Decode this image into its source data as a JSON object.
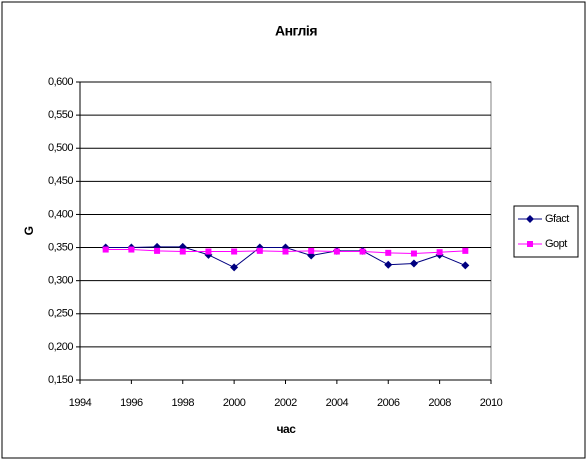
{
  "chart_data": {
    "type": "line",
    "title": "Англія",
    "x_label": "час",
    "y_label": "G",
    "x": [
      1995,
      1996,
      1997,
      1998,
      1999,
      2000,
      2001,
      2002,
      2003,
      2004,
      2005,
      2006,
      2007,
      2008,
      2009
    ],
    "series": [
      {
        "name": "Gfact",
        "color": "#000080",
        "marker": "diamond",
        "values": [
          0.35,
          0.35,
          0.351,
          0.351,
          0.339,
          0.32,
          0.35,
          0.35,
          0.338,
          0.345,
          0.345,
          0.324,
          0.326,
          0.339,
          0.323
        ]
      },
      {
        "name": "Gopt",
        "color": "#ff00ff",
        "marker": "square",
        "values": [
          0.347,
          0.347,
          0.345,
          0.344,
          0.344,
          0.344,
          0.345,
          0.344,
          0.345,
          0.344,
          0.344,
          0.342,
          0.341,
          0.343,
          0.345
        ]
      }
    ],
    "xlim": [
      1994,
      2010
    ],
    "xticks": [
      1994,
      1996,
      1998,
      2000,
      2002,
      2004,
      2006,
      2008,
      2010
    ],
    "ylim": [
      0.15,
      0.6
    ],
    "yticks": [
      {
        "value": 0.15,
        "label": "0,150"
      },
      {
        "value": 0.2,
        "label": "0,200"
      },
      {
        "value": 0.25,
        "label": "0,250"
      },
      {
        "value": 0.3,
        "label": "0,300"
      },
      {
        "value": 0.35,
        "label": "0,350"
      },
      {
        "value": 0.4,
        "label": "0,400"
      },
      {
        "value": 0.45,
        "label": "0,450"
      },
      {
        "value": 0.5,
        "label": "0,500"
      },
      {
        "value": 0.55,
        "label": "0,550"
      },
      {
        "value": 0.6,
        "label": "0,600"
      }
    ],
    "grid": true,
    "legend": "right"
  }
}
